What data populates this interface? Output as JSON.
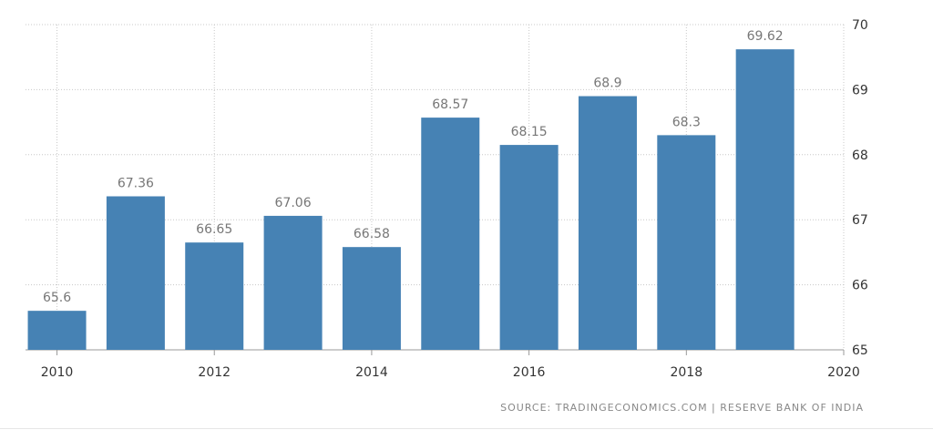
{
  "chart_data": {
    "type": "bar",
    "title": "",
    "xlabel": "",
    "ylabel": "",
    "categories": [
      "2010",
      "2011",
      "2012",
      "2013",
      "2014",
      "2015",
      "2016",
      "2017",
      "2018",
      "2019"
    ],
    "values": [
      65.6,
      67.36,
      66.65,
      67.06,
      66.58,
      68.57,
      68.15,
      68.9,
      68.3,
      69.62
    ],
    "value_labels": [
      "65.6",
      "67.36",
      "66.65",
      "67.06",
      "66.58",
      "68.57",
      "68.15",
      "68.9",
      "68.3",
      "69.62"
    ],
    "x_ticks": [
      "2010",
      "2012",
      "2014",
      "2016",
      "2018",
      "2020"
    ],
    "y_ticks": [
      "65",
      "66",
      "67",
      "68",
      "69",
      "70"
    ],
    "ylim": [
      65,
      70
    ],
    "y_axis_position": "right",
    "grid": true,
    "colors": {
      "bar": "#4682b4",
      "grid": "#c8c8c8",
      "value_label": "#777777",
      "tick_label": "#333333"
    }
  },
  "source": "SOURCE: TRADINGECONOMICS.COM | RESERVE BANK OF INDIA"
}
